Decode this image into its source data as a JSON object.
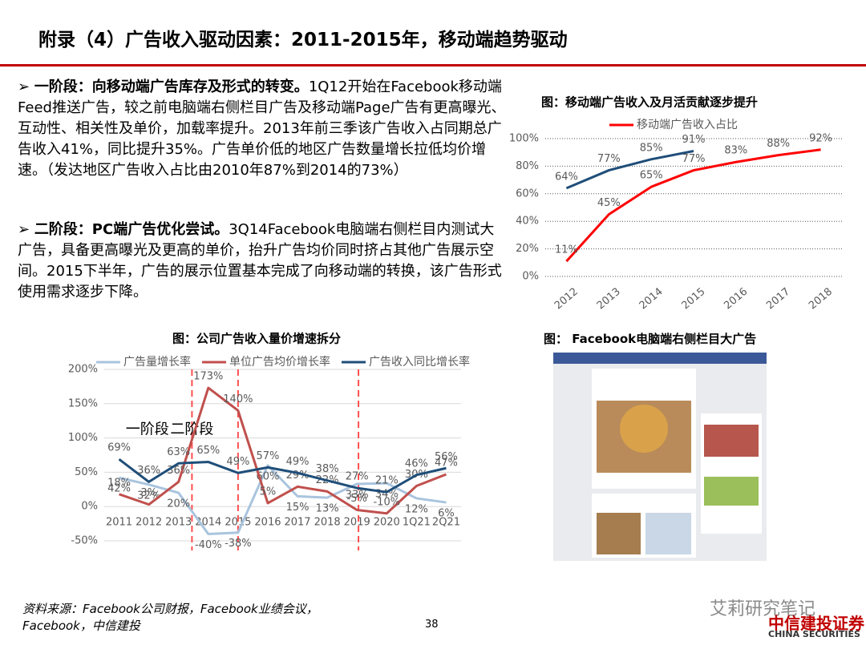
{
  "header": {
    "title": "附录（4）广告收入驱动因素：2011-2015年，移动端趋势驱动"
  },
  "bullets": [
    {
      "lead": "一阶段：向移动端广告库存及形式的转变。",
      "text": "1Q12开始在Facebook移动端Feed推送广告，较之前电脑端右侧栏目广告及移动端Page广告有更高曝光、互动性、相关性及单价，加载率提升。2013年前三季该广告收入占同期总广告收入41%，同比提升35%。广告单价低的地区广告数量增长拉低均价增速。（发达地区广告收入占比由2010年87%到2014的73%）"
    },
    {
      "lead": "二阶段：PC端广告优化尝试。",
      "text": "3Q14Facebook电脑端右侧栏目内测试大广告，具备更高曝光及更高的单价，抬升广告均价同时挤占其他广告展示空间。2015下半年，广告的展示位置基本完成了向移动端的转换，该广告形式使用需求逐步下降。"
    }
  ],
  "chart_data": [
    {
      "type": "line",
      "title": "图：移动端广告收入及月活贡献逐步提升",
      "categories": [
        "2012",
        "2013",
        "2014",
        "2015",
        "2016",
        "2017",
        "2018"
      ],
      "series": [
        {
          "color": "#1f4e79",
          "values": [
            64,
            77,
            85,
            91,
            null,
            null,
            null
          ],
          "value_labels": [
            "64%",
            "77%",
            "85%",
            "91%",
            null,
            null,
            null
          ]
        },
        {
          "name": "移动端广告收入占比",
          "color": "#ff0000",
          "values": [
            11,
            45,
            65,
            77,
            83,
            88,
            92
          ],
          "value_labels": [
            "11%",
            "45%",
            "65%",
            "77%",
            "83%",
            "88%",
            "92%"
          ]
        }
      ],
      "ylim": [
        0,
        100
      ],
      "yticks": [
        {
          "value": 0,
          "label": "0%"
        },
        {
          "value": 20,
          "label": "20%"
        },
        {
          "value": 40,
          "label": "40%"
        },
        {
          "value": 60,
          "label": "60%"
        },
        {
          "value": 80,
          "label": "80%"
        },
        {
          "value": 100,
          "label": "100%"
        }
      ],
      "grid": true,
      "legend": "top"
    },
    {
      "type": "line",
      "title": "图：公司广告收入量价增速拆分",
      "categories": [
        "2011",
        "2012",
        "2013",
        "2014",
        "2015",
        "2016",
        "2017",
        "2018",
        "2019",
        "2020",
        "1Q21",
        "2Q21"
      ],
      "series": [
        {
          "name": "广告量增长率",
          "color": "#a9c4de",
          "values": [
            42,
            32,
            20,
            -40,
            -38,
            60,
            15,
            13,
            33,
            34,
            12,
            6
          ],
          "value_labels": [
            "42%",
            "32%",
            "20%",
            "-40%",
            "-38%",
            "60%",
            "15%",
            "13%",
            "33%",
            "34%",
            "12%",
            "6%"
          ]
        },
        {
          "name": "单位广告均价增长率",
          "color": "#c0504d",
          "values": [
            18,
            3,
            36,
            173,
            140,
            5,
            29,
            22,
            -5,
            -10,
            30,
            47
          ],
          "value_labels": [
            "18%",
            "3%",
            "36%",
            "173%",
            "140%",
            "5%",
            "29%",
            "22%",
            "-5%",
            "-10%",
            "30%",
            "47%"
          ]
        },
        {
          "name": "广告收入同比增长率",
          "color": "#1f4e79",
          "values": [
            69,
            36,
            63,
            65,
            49,
            57,
            49,
            38,
            27,
            21,
            46,
            56
          ],
          "value_labels": [
            "69%",
            "36%",
            "63%",
            "65%",
            "49%",
            "57%",
            "49%",
            "38%",
            "27%",
            "21%",
            "46%",
            "56%"
          ]
        }
      ],
      "ylim": [
        -50,
        200
      ],
      "yticks": [
        {
          "value": -50,
          "label": "-50%"
        },
        {
          "value": 0,
          "label": "0%"
        },
        {
          "value": 50,
          "label": "50%"
        },
        {
          "value": 100,
          "label": "100%"
        },
        {
          "value": 150,
          "label": "150%"
        },
        {
          "value": 200,
          "label": "200%"
        }
      ],
      "grid": true,
      "legend": "top",
      "annotations": [
        "一阶段",
        "二阶段"
      ]
    }
  ],
  "image": {
    "caption": "图： Facebook电脑端右侧栏目大广告"
  },
  "footer": {
    "source": "资料来源：Facebook公司财报，Facebook业绩会议，Facebook，中信建投",
    "page": "38",
    "watermark": "艾莉研究笔记",
    "logo": "中信建投证券",
    "logo_en": "CHINA SECURITIES"
  }
}
